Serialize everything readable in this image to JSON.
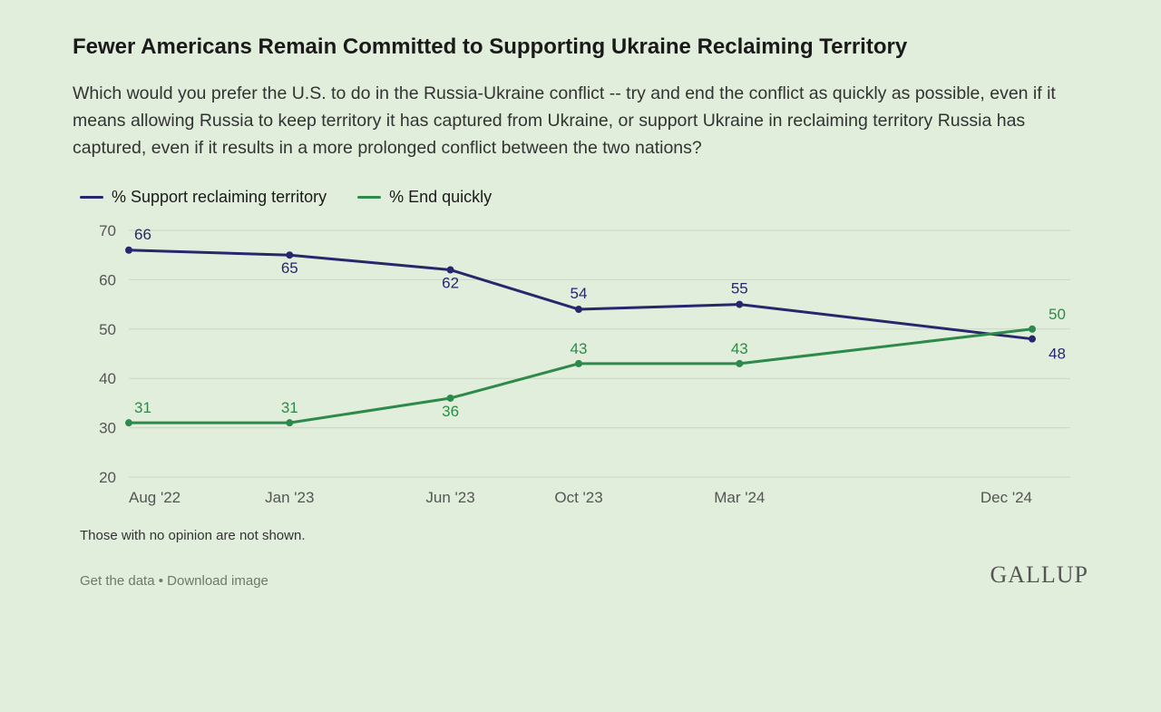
{
  "title": "Fewer Americans Remain Committed to Supporting Ukraine Reclaiming Territory",
  "subtitle": "Which would you prefer the U.S. to do in the Russia-Ukraine conflict -- try and end the conflict as quickly as possible, even if it means allowing Russia to keep territory it has captured from Ukraine, or support Ukraine in reclaiming territory Russia has captured, even if it results in a more prolonged conflict between the two nations?",
  "categories": [
    "Aug '22",
    "Jan '23",
    "Jun '23",
    "Oct '23",
    "Mar '24",
    "Dec '24"
  ],
  "chart": {
    "type": "line",
    "ylim": [
      20,
      70
    ],
    "ytick_step": 10,
    "yticks": [
      20,
      30,
      40,
      50,
      60,
      70
    ],
    "x_positions": [
      0,
      0.178,
      0.356,
      0.498,
      0.676,
      1.0
    ],
    "background_color": "#e1eedb",
    "grid_color": "#c8d6c3",
    "axis_label_color": "#555555",
    "axis_fontsize": 17,
    "data_label_fontsize": 17,
    "line_width": 3,
    "marker_radius": 4,
    "series": [
      {
        "name": "% Support reclaiming territory",
        "color": "#26276d",
        "values": [
          66,
          65,
          62,
          54,
          55,
          48
        ],
        "label_dy": [
          -12,
          20,
          20,
          -12,
          -12,
          22
        ]
      },
      {
        "name": "% End quickly",
        "color": "#2d8a4a",
        "values": [
          31,
          31,
          36,
          43,
          43,
          50
        ],
        "label_dy": [
          -11,
          -11,
          20,
          -11,
          -11,
          -11
        ]
      }
    ]
  },
  "footnote": "Those with no opinion are not shown.",
  "links": {
    "get_data": "Get the data",
    "download": "Download image",
    "sep": " • "
  },
  "brand": "GALLUP"
}
